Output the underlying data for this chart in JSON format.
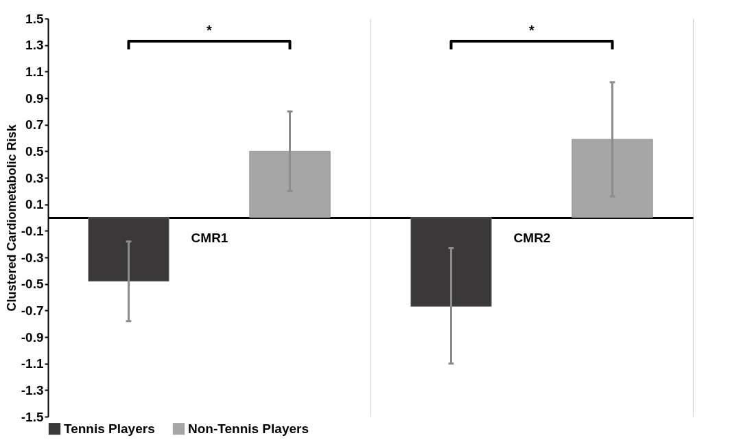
{
  "chart_data": {
    "type": "bar",
    "ylabel": "Clustered Cardiometabolic Risk",
    "categories": [
      "CMR1",
      "CMR2"
    ],
    "series": [
      {
        "name": "Tennis Players",
        "color": "#3b3839",
        "values": [
          -0.48,
          -0.67
        ],
        "errors": [
          [
            -0.78,
            -0.18
          ],
          [
            -1.1,
            -0.23
          ]
        ]
      },
      {
        "name": "Non-Tennis Players",
        "color": "#a6a6a6",
        "values": [
          0.5,
          0.59
        ],
        "errors": [
          [
            0.2,
            0.8
          ],
          [
            0.16,
            1.02
          ]
        ]
      }
    ],
    "ylim": [
      -1.5,
      1.5
    ],
    "yticks": [
      1.5,
      1.3,
      1.1,
      0.9,
      0.7,
      0.5,
      0.3,
      0.1,
      -0.1,
      -0.3,
      -0.5,
      -0.7,
      -0.9,
      -1.1,
      -1.3,
      -1.5
    ],
    "annotations": [
      "*",
      "*"
    ],
    "grid": "x",
    "legend": "bottom"
  }
}
